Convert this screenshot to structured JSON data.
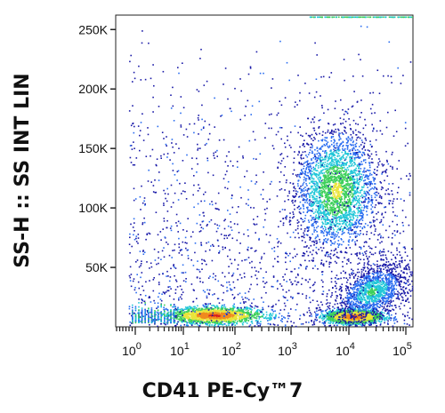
{
  "chart_data": {
    "type": "scatter",
    "title": "",
    "xlabel": "CD41 PE-Cy™7",
    "ylabel": "SS-H :: SS INT LIN",
    "x_scale": "biexponential",
    "x_ticks": [
      {
        "value": 1,
        "base": "10",
        "exp": "0"
      },
      {
        "value": 10,
        "base": "10",
        "exp": "1"
      },
      {
        "value": 100,
        "base": "10",
        "exp": "2"
      },
      {
        "value": 1000,
        "base": "10",
        "exp": "3"
      },
      {
        "value": 10000,
        "base": "10",
        "exp": "4"
      },
      {
        "value": 100000,
        "base": "10",
        "exp": "5"
      }
    ],
    "y_scale": "linear",
    "ylim": [
      0,
      262144
    ],
    "y_ticks": [
      {
        "value": 50000,
        "label": "50K"
      },
      {
        "value": 100000,
        "label": "100K"
      },
      {
        "value": 150000,
        "label": "150K"
      },
      {
        "value": 200000,
        "label": "200K"
      },
      {
        "value": 250000,
        "label": "250K"
      }
    ],
    "density_colors": [
      "#1a1aa8",
      "#2a6df0",
      "#22c7d8",
      "#3ccf5a",
      "#e9e43a",
      "#f08a1e",
      "#d81e1e"
    ],
    "populations": [
      {
        "name": "",
        "center_x": 6000,
        "center_y": 115000,
        "spread_x_decades": 0.35,
        "spread_y": 25000,
        "peak_density": 5
      },
      {
        "name": "",
        "center_x": 40,
        "center_y": 10000,
        "spread_x_decades": 0.45,
        "spread_y": 3500,
        "peak_density": 7
      },
      {
        "name": "",
        "center_x": 12000,
        "center_y": 9000,
        "spread_x_decades": 0.25,
        "spread_y": 3000,
        "peak_density": 7
      },
      {
        "name": "",
        "center_x": 25000,
        "center_y": 30000,
        "spread_x_decades": 0.3,
        "spread_y": 12000,
        "peak_density": 4
      }
    ]
  }
}
